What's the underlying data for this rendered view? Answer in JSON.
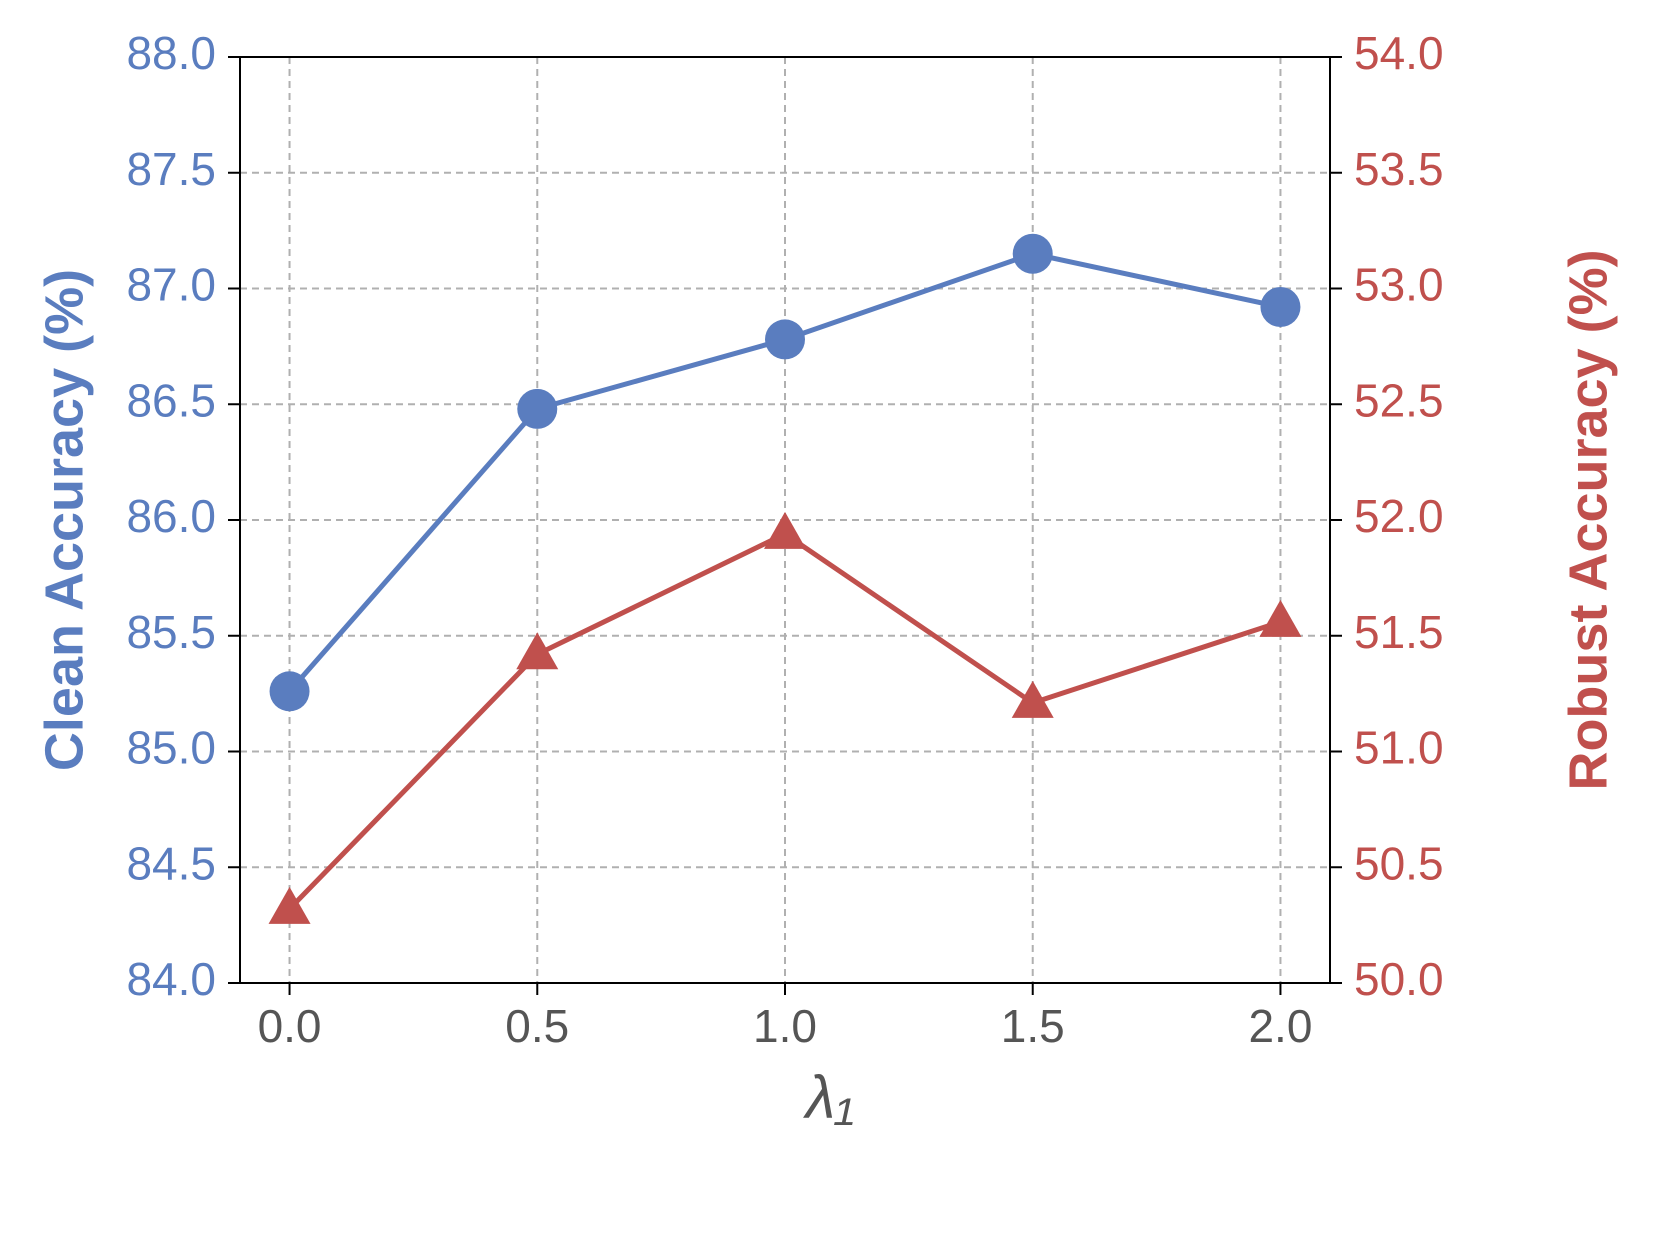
{
  "chart_data": {
    "type": "line",
    "x": [
      0,
      0.5,
      1,
      1.5,
      2
    ],
    "xlabel": "λ₁",
    "ylabel": "Clean Accuracy (%)",
    "y2label": "Robust Accuracy (%)",
    "xlim": [
      -0.1,
      2.1
    ],
    "xticks": [
      {
        "value": 0,
        "label": "0.0"
      },
      0.5,
      {
        "value": 1,
        "label": "1.0"
      },
      1.5,
      {
        "value": 2,
        "label": "2.0"
      }
    ],
    "ylim": [
      84,
      88
    ],
    "yticks": [
      {
        "value": 84,
        "label": "84.0"
      },
      84.5,
      {
        "value": 85,
        "label": "85.0"
      },
      85.5,
      {
        "value": 86,
        "label": "86.0"
      },
      86.5,
      {
        "value": 87,
        "label": "87.0"
      },
      87.5,
      {
        "value": 88,
        "label": "88.0"
      }
    ],
    "y2lim": [
      50,
      54
    ],
    "y2ticks": [
      {
        "value": 50,
        "label": "50.0"
      },
      50.5,
      {
        "value": 51,
        "label": "51.0"
      },
      51.5,
      {
        "value": 52,
        "label": "52.0"
      },
      52.5,
      {
        "value": 53,
        "label": "53.0"
      },
      53.5,
      {
        "value": 54,
        "label": "54.0"
      }
    ],
    "grid": true,
    "series": [
      {
        "name": "Clean Accuracy",
        "color": "#5a7dbf",
        "marker": "circle",
        "values": [
          85.26,
          86.48,
          86.78,
          87.15,
          86.92
        ]
      },
      {
        "name": "Robust Accuracy",
        "color": "#c0504d",
        "marker": "triangle",
        "axis": "y2",
        "values": [
          50.32,
          51.42,
          51.94,
          51.21,
          51.56
        ]
      }
    ]
  }
}
